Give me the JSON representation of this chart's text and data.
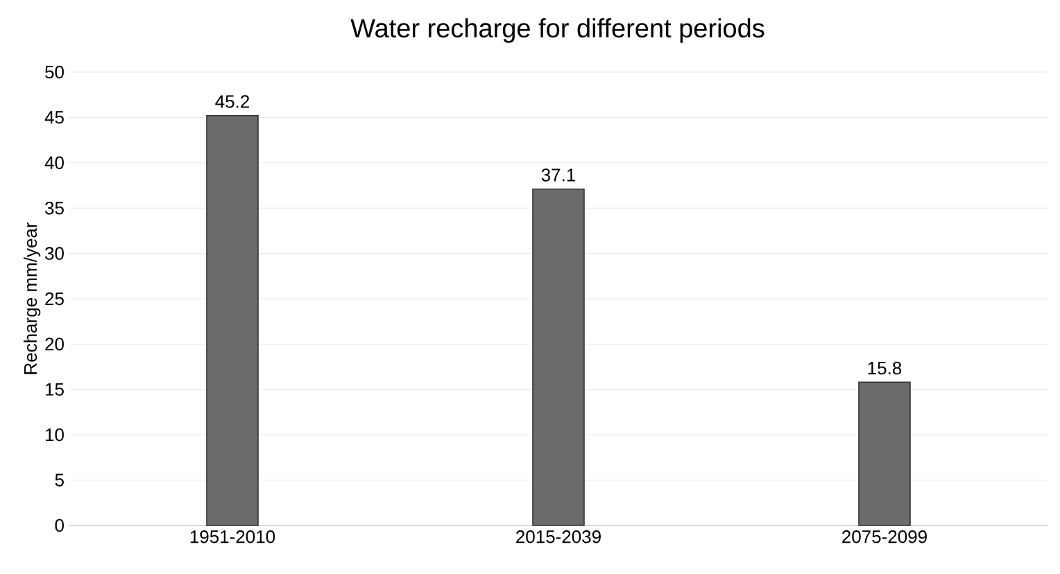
{
  "chart_data": {
    "type": "bar",
    "title": "Water recharge for different periods",
    "ylabel": "Recharge mm/year",
    "categories": [
      "1951-2010",
      "2015-2039",
      "2075-2099"
    ],
    "values": [
      45.2,
      37.1,
      15.8
    ],
    "color": "#6b6b6b",
    "ylim": [
      0,
      50
    ],
    "yticks": [
      0,
      5,
      10,
      15,
      20,
      25,
      30,
      35,
      40,
      45,
      50
    ],
    "grid": "y",
    "data_labels": true
  }
}
